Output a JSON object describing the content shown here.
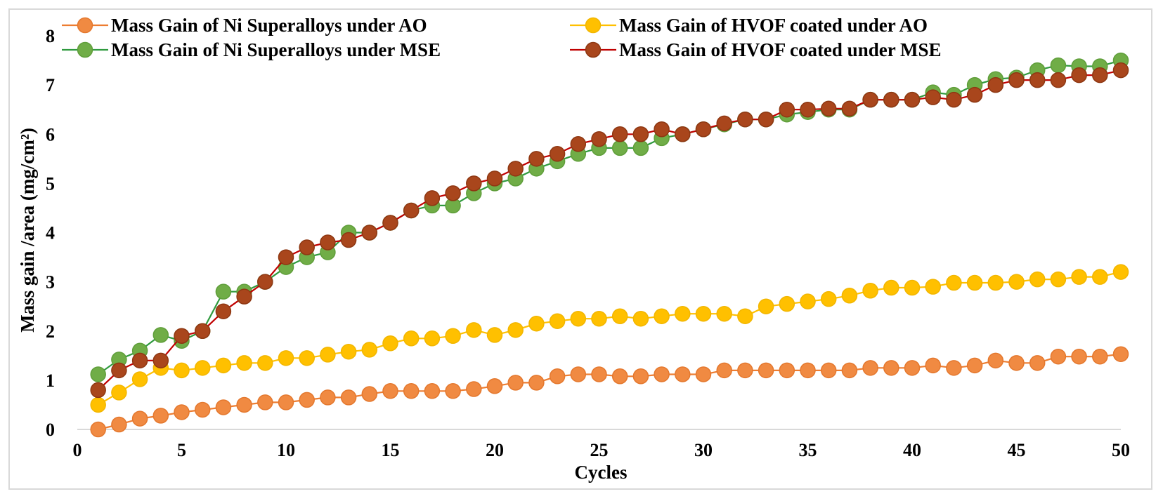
{
  "chart_data": {
    "type": "line",
    "title": "",
    "xlabel": "Cycles",
    "ylabel": "Mass gain /area (mg/cm²)",
    "xlim": [
      0,
      50
    ],
    "ylim": [
      0,
      8
    ],
    "xticks": [
      0,
      5,
      10,
      15,
      20,
      25,
      30,
      35,
      40,
      45,
      50
    ],
    "yticks": [
      0,
      1,
      2,
      3,
      4,
      5,
      6,
      7,
      8
    ],
    "grid": false,
    "legend_position": "top",
    "x": [
      1,
      2,
      3,
      4,
      5,
      6,
      7,
      8,
      9,
      10,
      11,
      12,
      13,
      14,
      15,
      16,
      17,
      18,
      19,
      20,
      21,
      22,
      23,
      24,
      25,
      26,
      27,
      28,
      29,
      30,
      31,
      32,
      33,
      34,
      35,
      36,
      37,
      38,
      39,
      40,
      41,
      42,
      43,
      44,
      45,
      46,
      47,
      48,
      49,
      50
    ],
    "series": [
      {
        "name": "Mass Gain of Ni Superalloys under AO",
        "line_color": "#ED7D31",
        "marker_color": "#F08A42",
        "marker_edge": "#E4782E",
        "values": [
          0,
          0.1,
          0.22,
          0.28,
          0.35,
          0.4,
          0.45,
          0.5,
          0.55,
          0.55,
          0.6,
          0.65,
          0.65,
          0.72,
          0.78,
          0.78,
          0.78,
          0.78,
          0.82,
          0.88,
          0.95,
          0.95,
          1.08,
          1.12,
          1.12,
          1.08,
          1.08,
          1.12,
          1.12,
          1.12,
          1.2,
          1.2,
          1.2,
          1.2,
          1.2,
          1.2,
          1.2,
          1.25,
          1.25,
          1.25,
          1.3,
          1.25,
          1.3,
          1.4,
          1.35,
          1.35,
          1.48,
          1.48,
          1.48,
          1.53
        ]
      },
      {
        "name": "Mass Gain of HVOF coated under AO",
        "line_color": "#FFC000",
        "marker_color": "#FFC000",
        "marker_edge": "#F2B600",
        "values": [
          0.5,
          0.75,
          1.02,
          1.25,
          1.2,
          1.25,
          1.3,
          1.35,
          1.35,
          1.45,
          1.45,
          1.52,
          1.58,
          1.62,
          1.75,
          1.85,
          1.85,
          1.9,
          2.02,
          1.92,
          2.02,
          2.15,
          2.2,
          2.25,
          2.25,
          2.3,
          2.25,
          2.3,
          2.35,
          2.35,
          2.35,
          2.3,
          2.5,
          2.55,
          2.6,
          2.65,
          2.72,
          2.82,
          2.88,
          2.88,
          2.9,
          2.98,
          2.98,
          2.98,
          3,
          3.05,
          3.05,
          3.1,
          3.1,
          3.2
        ]
      },
      {
        "name": "Mass Gain of Ni Superalloys under MSE",
        "line_color": "#2F9A3E",
        "marker_color": "#70AD47",
        "marker_edge": "#5F9E3A",
        "values": [
          1.12,
          1.42,
          1.6,
          1.92,
          1.8,
          2,
          2.8,
          2.8,
          3,
          3.3,
          3.5,
          3.6,
          4,
          4,
          4.2,
          4.45,
          4.55,
          4.55,
          4.8,
          5,
          5.1,
          5.3,
          5.45,
          5.6,
          5.72,
          5.72,
          5.72,
          5.92,
          6,
          6.1,
          6.2,
          6.3,
          6.3,
          6.4,
          6.45,
          6.5,
          6.5,
          6.7,
          6.7,
          6.7,
          6.85,
          6.8,
          7,
          7.12,
          7.15,
          7.3,
          7.4,
          7.38,
          7.38,
          7.5
        ]
      },
      {
        "name": "Mass Gain of HVOF coated under MSE",
        "line_color": "#C00000",
        "marker_color": "#A9461C",
        "marker_edge": "#8E3712",
        "values": [
          0.8,
          1.2,
          1.4,
          1.4,
          1.9,
          2,
          2.4,
          2.7,
          3,
          3.5,
          3.7,
          3.8,
          3.85,
          4,
          4.2,
          4.45,
          4.7,
          4.8,
          5,
          5.1,
          5.3,
          5.5,
          5.6,
          5.8,
          5.9,
          6,
          6,
          6.1,
          6,
          6.1,
          6.22,
          6.3,
          6.3,
          6.5,
          6.5,
          6.52,
          6.52,
          6.7,
          6.7,
          6.7,
          6.75,
          6.7,
          6.8,
          7,
          7.1,
          7.1,
          7.1,
          7.2,
          7.2,
          7.3
        ]
      }
    ]
  }
}
